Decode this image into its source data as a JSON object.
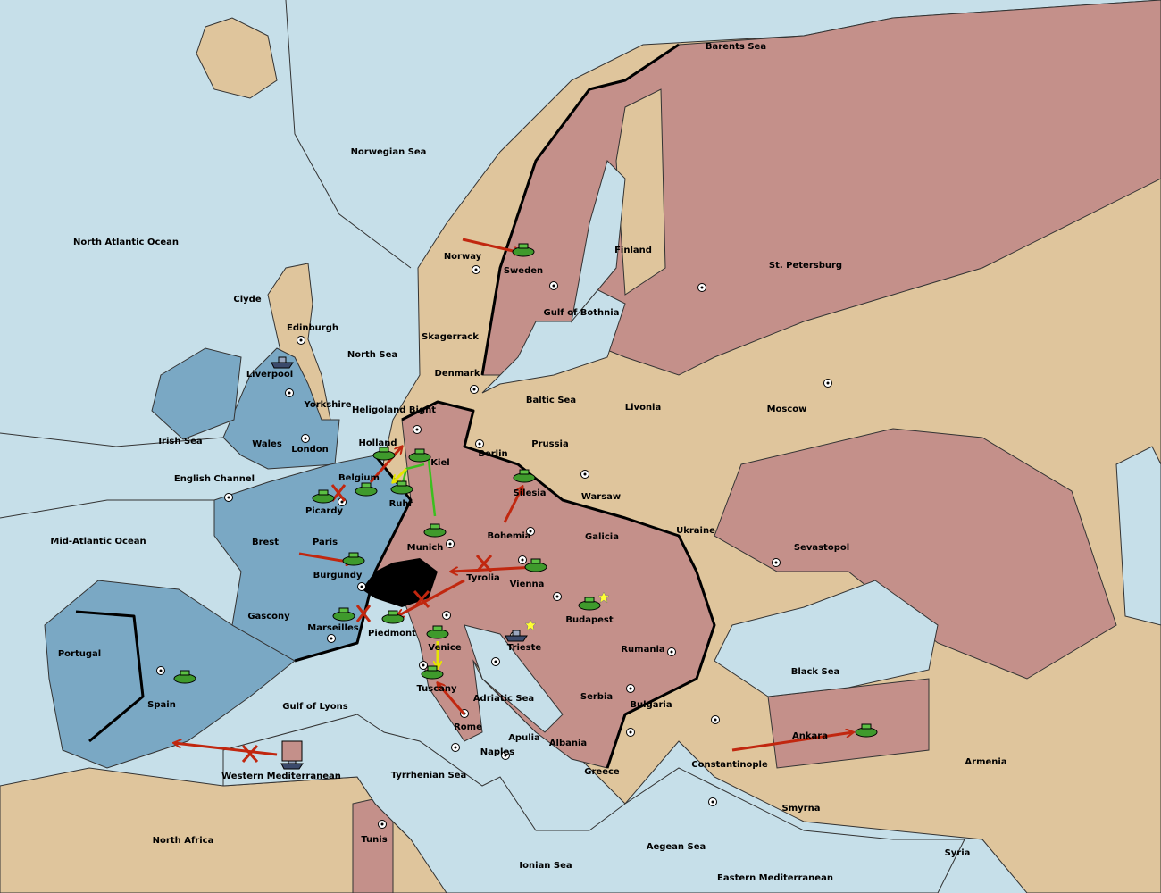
{
  "map": {
    "labels": [
      "Barents Sea",
      "Norwegian Sea",
      "North Atlantic Ocean",
      "Norway",
      "Sweden",
      "Finland",
      "St. Petersburg",
      "Clyde",
      "Edinburgh",
      "Gulf of Bothnia",
      "Skagerrack",
      "North Sea",
      "Liverpool",
      "Denmark",
      "Yorkshire",
      "Baltic Sea",
      "Livonia",
      "Moscow",
      "Heligoland Bight",
      "Irish Sea",
      "Wales",
      "London",
      "Holland",
      "Berlin",
      "Prussia",
      "Kiel",
      "English Channel",
      "Belgium",
      "Silesia",
      "Warsaw",
      "Ruhr",
      "Picardy",
      "Ukraine",
      "Mid-Atlantic Ocean",
      "Brest",
      "Paris",
      "Bohemia",
      "Galicia",
      "Sevastopol",
      "Munich",
      "Burgundy",
      "Tyrolia",
      "Vienna",
      "Gascony",
      "Budapest",
      "Marseilles",
      "Piedmont",
      "Venice",
      "Trieste",
      "Rumania",
      "Portugal",
      "Black Sea",
      "Tuscany",
      "Serbia",
      "Adriatic Sea",
      "Spain",
      "Gulf of Lyons",
      "Bulgaria",
      "Rome",
      "Apulia",
      "Albania",
      "Ankara",
      "Constantinople",
      "Armenia",
      "Naples",
      "Tyrrhenian Sea",
      "Western Mediterranean",
      "Greece",
      "Smyrna",
      "North Africa",
      "Tunis",
      "Aegean Sea",
      "Syria",
      "Ionian Sea",
      "Eastern Mediterranean"
    ]
  }
}
